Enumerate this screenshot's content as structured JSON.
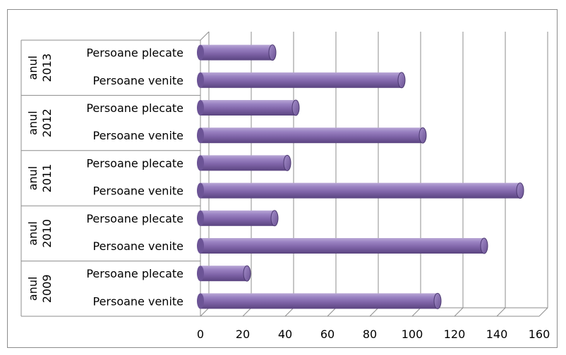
{
  "chart_data": {
    "type": "bar",
    "orientation": "horizontal",
    "style": "3d-cylinder",
    "bar_color": "#8064A2",
    "grid": true,
    "xlim": [
      0,
      160
    ],
    "x_ticks": [
      0,
      20,
      40,
      60,
      80,
      100,
      120,
      140,
      160
    ],
    "x_tick_labels": [
      "0",
      "20",
      "40",
      "60",
      "80",
      "100",
      "120",
      "140",
      "160"
    ],
    "groups": [
      {
        "prefix": "anul",
        "year": "2013",
        "bars": [
          {
            "label": "Persoane plecate",
            "value": 34
          },
          {
            "label": "Persoane venite",
            "value": 95
          }
        ]
      },
      {
        "prefix": "anul",
        "year": "2012",
        "bars": [
          {
            "label": "Persoane plecate",
            "value": 45
          },
          {
            "label": "Persoane venite",
            "value": 105
          }
        ]
      },
      {
        "prefix": "anul",
        "year": "2011",
        "bars": [
          {
            "label": "Persoane plecate",
            "value": 41
          },
          {
            "label": "Persoane venite",
            "value": 151
          }
        ]
      },
      {
        "prefix": "anul",
        "year": "2010",
        "bars": [
          {
            "label": "Persoane plecate",
            "value": 35
          },
          {
            "label": "Persoane venite",
            "value": 134
          }
        ]
      },
      {
        "prefix": "anul",
        "year": "2009",
        "bars": [
          {
            "label": "Persoane plecate",
            "value": 22
          },
          {
            "label": "Persoane venite",
            "value": 112
          }
        ]
      }
    ]
  }
}
